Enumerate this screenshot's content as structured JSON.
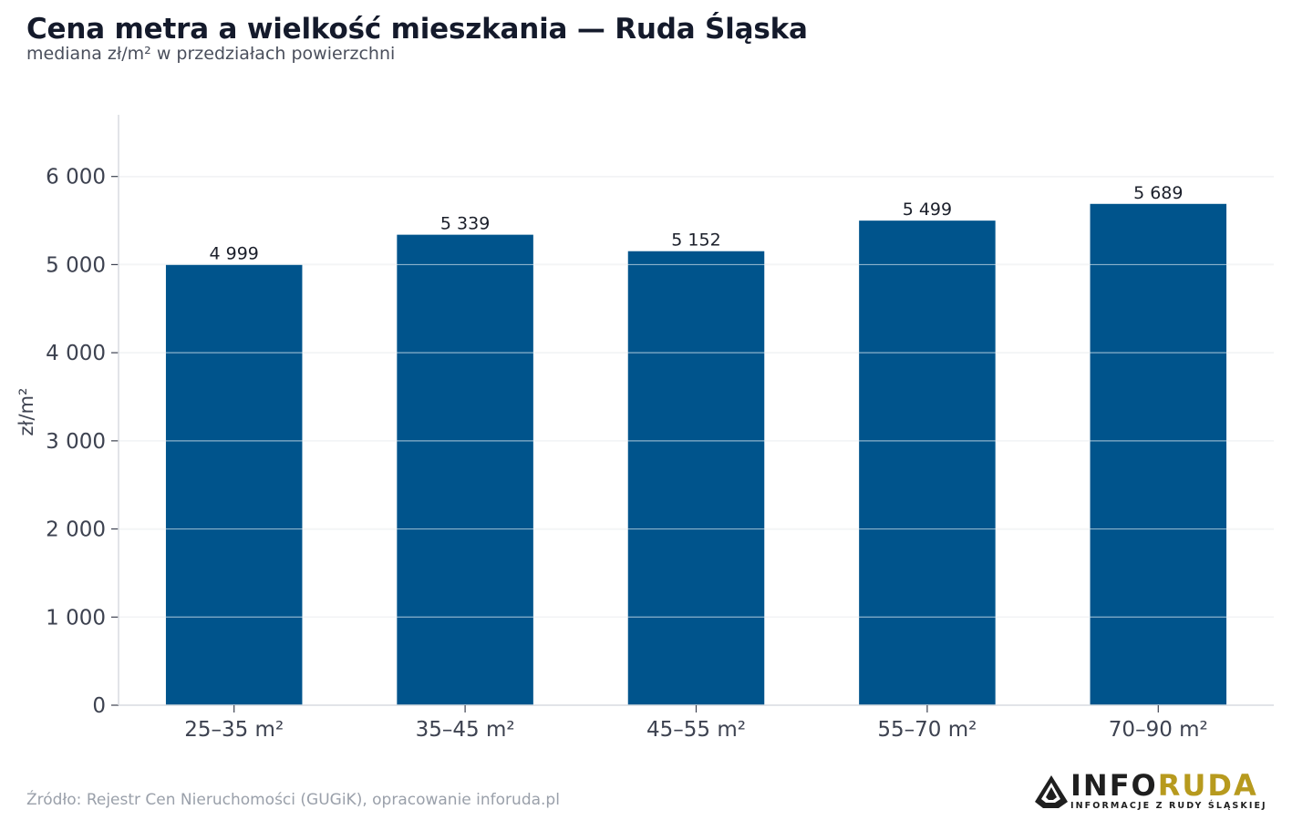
{
  "header": {
    "title": "Cena metra a wielkość mieszkania — Ruda Śląska",
    "subtitle": "mediana zł/m² w przedziałach powierzchni"
  },
  "footer": {
    "source": "Źródło: Rejestr Cen Nieruchomości (GUGiK), opracowanie inforuda.pl"
  },
  "logo": {
    "part1": "INFO",
    "part2": "RUDA",
    "tagline": "INFORMACJE Z RUDY ŚLĄSKIEJ",
    "colors": {
      "info": "#1f1f1f",
      "ruda": "#b79a1e"
    }
  },
  "chart_data": {
    "type": "bar",
    "title": "Cena metra a wielkość mieszkania — Ruda Śląska",
    "subtitle": "mediana zł/m² w przedziałach powierzchni",
    "xlabel": "",
    "ylabel": "zł/m²",
    "categories": [
      "25–35 m²",
      "35–45 m²",
      "45–55 m²",
      "55–70 m²",
      "70–90 m²"
    ],
    "values": [
      4999,
      5339,
      5152,
      5499,
      5689
    ],
    "value_labels": [
      "4 999",
      "5 339",
      "5 152",
      "5 499",
      "5 689"
    ],
    "ylim": [
      0,
      6700
    ],
    "yticks": [
      0,
      1000,
      2000,
      3000,
      4000,
      5000,
      6000
    ],
    "ytick_labels": [
      "0",
      "1 000",
      "2 000",
      "3 000",
      "4 000",
      "5 000",
      "6 000"
    ],
    "grid": true,
    "legend": "none",
    "colors": {
      "bar": "#00548c",
      "grid": "#e6e8ec",
      "axis": "#d8dbe0",
      "tick_text": "#3d4250",
      "value_text": "#1b1f2a"
    }
  }
}
